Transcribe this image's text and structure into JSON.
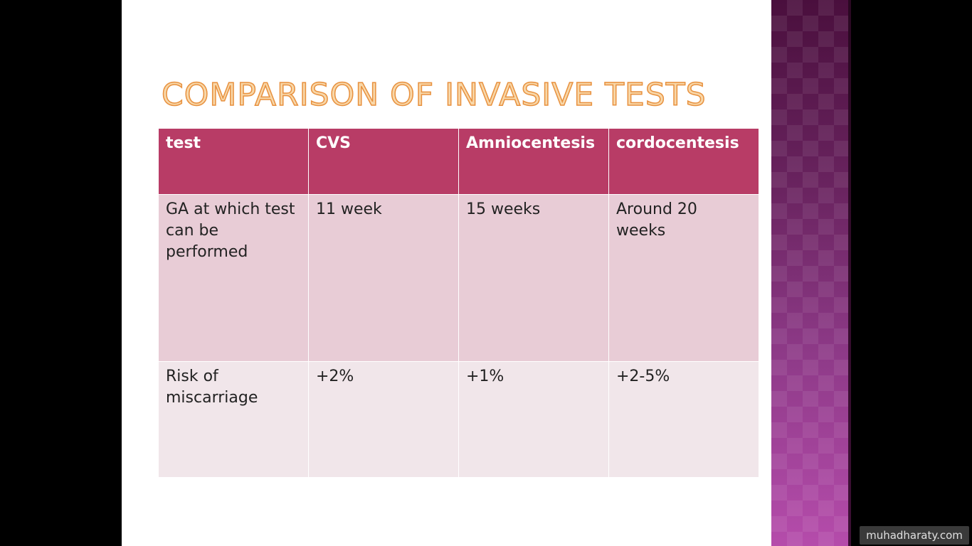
{
  "slide": {
    "title": "Comparison of invasive tests"
  },
  "table": {
    "headers": [
      "test",
      "CVS",
      "Amniocentesis",
      "cordocentesis"
    ],
    "rows": [
      [
        "GA at which test can be performed",
        "11 week",
        "15 weeks",
        "Around 20 weeks"
      ],
      [
        "Risk of miscarriage",
        "+2%",
        "+1%",
        "+2-5%"
      ]
    ]
  },
  "watermark": {
    "text": "muhadharaty.com"
  },
  "colors": {
    "header_bg": "#b83c66",
    "row_1_bg": "#e8ccd6",
    "row_2_bg": "#f1e6ea",
    "title_fill": "#f8d7a8",
    "title_outline": "#e8913f",
    "sidebar": "#8e3a88"
  }
}
